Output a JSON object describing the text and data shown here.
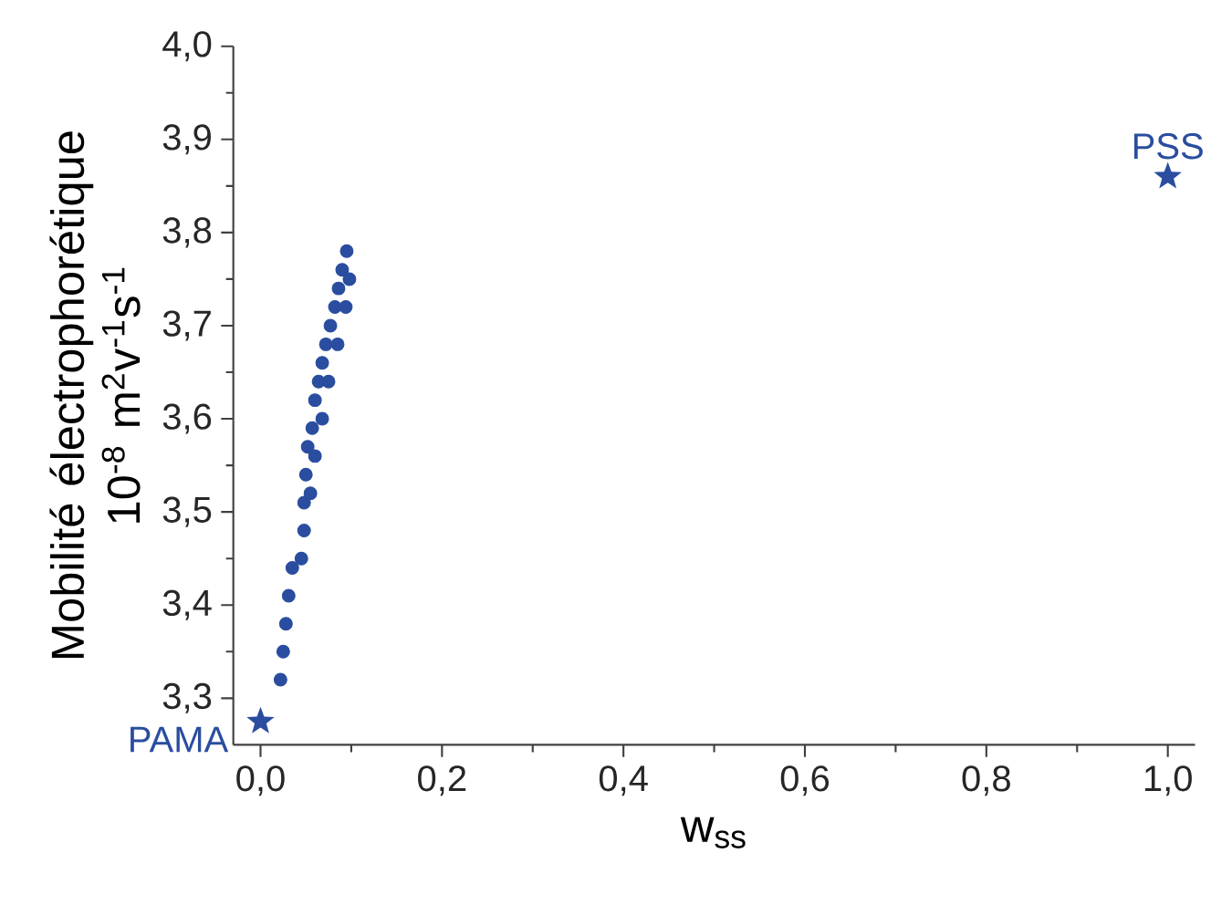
{
  "chart_data": {
    "type": "scatter",
    "xlabel": "w$_{ss}$",
    "ylabel": "Mobilité électrophorétique 10$^{-8}$ m$^{2}$v$^{-1}$s$^{-1}$",
    "xlim": [
      -0.03,
      1.03
    ],
    "ylim": [
      3.25,
      4.0
    ],
    "xticks": [
      {
        "value": 0,
        "label": "0,0"
      },
      {
        "value": 0.2,
        "label": "0,2"
      },
      {
        "value": 0.4,
        "label": "0,4"
      },
      {
        "value": 0.6,
        "label": "0,6"
      },
      {
        "value": 0.8,
        "label": "0,8"
      },
      {
        "value": 1.0,
        "label": "1,0"
      }
    ],
    "yticks": [
      {
        "value": 3.3,
        "label": "3,3"
      },
      {
        "value": 3.4,
        "label": "3,4"
      },
      {
        "value": 3.5,
        "label": "3,5"
      },
      {
        "value": 3.6,
        "label": "3,6"
      },
      {
        "value": 3.7,
        "label": "3,7"
      },
      {
        "value": 3.8,
        "label": "3,8"
      },
      {
        "value": 3.9,
        "label": "3,9"
      },
      {
        "value": 4.0,
        "label": "4,0"
      }
    ],
    "series": [
      {
        "type": "scatter",
        "marker": "circle",
        "color": "#2a4d9f",
        "x": [
          0.022,
          0.025,
          0.028,
          0.031,
          0.035,
          0.045,
          0.048,
          0.048,
          0.05,
          0.052,
          0.057,
          0.06,
          0.064,
          0.068,
          0.072,
          0.077,
          0.082,
          0.086,
          0.09,
          0.095,
          0.055,
          0.06,
          0.068,
          0.075,
          0.085,
          0.094,
          0.098
        ],
        "values": [
          3.32,
          3.35,
          3.38,
          3.41,
          3.44,
          3.45,
          3.48,
          3.51,
          3.54,
          3.57,
          3.59,
          3.62,
          3.64,
          3.66,
          3.68,
          3.7,
          3.72,
          3.74,
          3.76,
          3.78,
          3.52,
          3.56,
          3.6,
          3.64,
          3.68,
          3.72,
          3.75
        ]
      },
      {
        "type": "scatter",
        "marker": "star",
        "color": "#2a4d9f",
        "x": [
          0.0,
          1.0
        ],
        "values": [
          3.275,
          3.86
        ]
      }
    ],
    "annotations": [
      {
        "text": "PAMA",
        "x": 0.0,
        "y": 3.275
      },
      {
        "text": "PSS",
        "x": 1.0,
        "y": 3.86
      }
    ]
  }
}
